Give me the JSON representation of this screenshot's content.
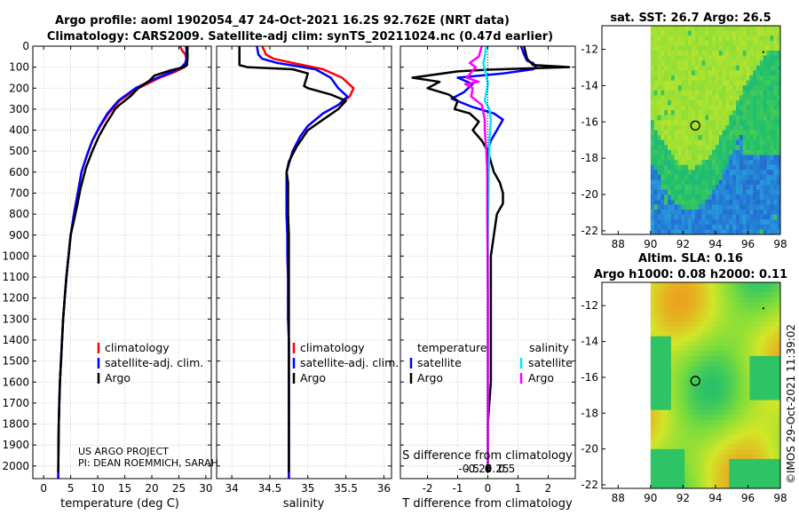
{
  "title": {
    "line1": "Argo profile: aoml 1902054_47 24-Oct-2021 16.2S 92.762E (NRT data)",
    "line2": "Climatology: CARS2009. Satellite-adj clim: synTS_20211024.nc (0.47d earlier)"
  },
  "colors": {
    "climatology": "#ff0000",
    "satellite": "#0000ff",
    "argo": "#000000",
    "sat_salinity": "#00e5ff",
    "argo_salinity": "#ff00ff"
  },
  "depth_axis": {
    "ylim": [
      0,
      2060
    ],
    "ticks": [
      0,
      100,
      200,
      300,
      400,
      500,
      600,
      700,
      800,
      900,
      1000,
      1100,
      1200,
      1300,
      1400,
      1500,
      1600,
      1700,
      1800,
      1900,
      2000
    ]
  },
  "panels": [
    {
      "id": "temperature",
      "xlabel": "temperature (deg C)",
      "xlim": [
        -2,
        31
      ],
      "xticks": [
        0,
        5,
        10,
        15,
        20,
        25,
        30
      ],
      "legend": [
        "climatology",
        "satellite-adj. clim.",
        "Argo"
      ],
      "note": [
        "US ARGO PROJECT",
        "PI: DEAN ROEMMICH, SARAH"
      ],
      "series": [
        {
          "name": "climatology",
          "color": "#ff0000",
          "x": [
            25.2,
            25.6,
            26.2,
            26.4,
            26.4,
            26.0,
            24.5,
            21.5,
            17.5,
            14.0,
            12.0,
            10.5,
            9.0,
            8.0,
            7.0,
            6.3,
            5.6,
            5.0,
            4.6,
            4.2,
            3.9,
            3.6,
            3.4,
            3.2,
            3.0,
            2.9,
            2.8,
            2.75,
            2.7
          ],
          "y": [
            0,
            20,
            40,
            60,
            80,
            100,
            120,
            150,
            200,
            260,
            320,
            380,
            450,
            520,
            600,
            700,
            800,
            900,
            1000,
            1100,
            1200,
            1300,
            1400,
            1500,
            1600,
            1700,
            1800,
            1900,
            2060
          ]
        },
        {
          "name": "satellite-adj. clim.",
          "color": "#0000ff",
          "x": [
            26.3,
            26.4,
            26.4,
            26.4,
            26.2,
            25.5,
            24.0,
            21.0,
            17.0,
            13.8,
            11.8,
            10.4,
            9.0,
            8.0,
            7.0,
            6.3,
            5.6,
            5.0,
            4.6,
            4.2,
            3.9,
            3.6,
            3.4,
            3.2,
            3.0,
            2.9,
            2.8,
            2.75,
            2.7
          ],
          "y": [
            0,
            20,
            40,
            60,
            80,
            100,
            120,
            150,
            200,
            260,
            320,
            380,
            450,
            520,
            600,
            700,
            800,
            900,
            1000,
            1100,
            1200,
            1300,
            1400,
            1500,
            1600,
            1700,
            1800,
            1900,
            2060
          ]
        },
        {
          "name": "Argo",
          "color": "#000000",
          "x": [
            26.6,
            26.6,
            26.5,
            26.0,
            23.5,
            20.5,
            19.5,
            17.5,
            16.0,
            14.0,
            13.2,
            12.5,
            11.5,
            10.2,
            9.0,
            7.8,
            6.8,
            6.2,
            5.6,
            5.0,
            4.6,
            4.2,
            3.9,
            3.6,
            3.4,
            3.2,
            3.0,
            2.9,
            2.8,
            2.75,
            2.7
          ],
          "y": [
            0,
            60,
            90,
            100,
            115,
            140,
            165,
            200,
            240,
            280,
            300,
            330,
            370,
            430,
            500,
            580,
            680,
            760,
            830,
            900,
            1000,
            1100,
            1200,
            1300,
            1400,
            1500,
            1600,
            1700,
            1800,
            1900,
            2030
          ]
        }
      ]
    },
    {
      "id": "salinity",
      "xlabel": "salinity",
      "xlim": [
        33.8,
        36.1
      ],
      "xticks": [
        34,
        34.5,
        35,
        35.5,
        36
      ],
      "legend": [
        "climatology",
        "satellite-adj. clim.",
        "Argo"
      ],
      "series": [
        {
          "name": "climatology",
          "color": "#ff0000",
          "x": [
            34.4,
            34.45,
            34.55,
            34.8,
            35.2,
            35.45,
            35.6,
            35.55,
            35.4,
            35.2,
            35.0,
            34.9,
            34.8,
            34.75,
            34.72,
            34.72,
            34.72,
            34.73,
            34.73,
            34.74,
            34.74,
            34.74,
            34.75,
            34.75,
            34.75,
            34.75,
            34.75,
            34.75
          ],
          "y": [
            0,
            40,
            60,
            80,
            110,
            150,
            200,
            240,
            280,
            320,
            380,
            430,
            500,
            560,
            600,
            700,
            800,
            900,
            1000,
            1100,
            1200,
            1300,
            1400,
            1500,
            1600,
            1700,
            1800,
            2060
          ]
        },
        {
          "name": "satellite-adj. clim.",
          "color": "#0000ff",
          "x": [
            34.33,
            34.35,
            34.4,
            34.6,
            35.1,
            35.3,
            35.4,
            35.52,
            35.4,
            35.2,
            35.0,
            34.9,
            34.8,
            34.75,
            34.72,
            34.72,
            34.72,
            34.73,
            34.73,
            34.74,
            34.74,
            34.74,
            34.75,
            34.75,
            34.75,
            34.75,
            34.75,
            34.75
          ],
          "y": [
            0,
            40,
            60,
            80,
            110,
            150,
            200,
            240,
            280,
            320,
            380,
            430,
            500,
            560,
            600,
            700,
            800,
            900,
            1000,
            1100,
            1200,
            1300,
            1400,
            1500,
            1600,
            1700,
            1800,
            2060
          ]
        },
        {
          "name": "Argo",
          "color": "#000000",
          "x": [
            34.1,
            34.1,
            34.2,
            34.8,
            35.0,
            34.95,
            35.0,
            35.3,
            35.5,
            35.4,
            35.2,
            35.0,
            34.85,
            34.75,
            34.72,
            34.74,
            34.74,
            34.74,
            34.75,
            34.75,
            34.75,
            34.75,
            34.75,
            34.75,
            34.75,
            34.75,
            34.75
          ],
          "y": [
            0,
            90,
            100,
            110,
            130,
            190,
            200,
            230,
            260,
            300,
            350,
            400,
            480,
            550,
            600,
            650,
            700,
            800,
            900,
            1000,
            1200,
            1400,
            1600,
            1800,
            1900,
            1950,
            2030
          ]
        }
      ]
    },
    {
      "id": "difference",
      "xlabel": "T difference from climatology",
      "xlim": [
        -2.9,
        2.9
      ],
      "xticks": [
        -2,
        -1,
        0,
        1,
        2
      ],
      "inner_xlabel": "S difference from climatology",
      "inner_xticks": [
        -0.5,
        -0.25,
        0,
        0.25,
        0.5
      ],
      "legend_left_title": "temperature",
      "legend_left": [
        "satellite",
        "Argo"
      ],
      "legend_right_title": "salinity",
      "legend_right": [
        "satellite",
        "Argo"
      ],
      "series": [
        {
          "name": "temperature satellite",
          "color": "#0000ff",
          "x": [
            1.1,
            1.2,
            1.3,
            1.5,
            1.6,
            1.5,
            0.5,
            -1.0,
            -0.5,
            -0.8,
            -1.2,
            -0.5,
            0.2,
            0.5,
            0.3,
            0.1,
            0.0,
            0.0,
            0.0,
            0.0
          ],
          "y": [
            0,
            40,
            70,
            80,
            100,
            110,
            130,
            150,
            180,
            220,
            250,
            290,
            320,
            350,
            400,
            450,
            500,
            600,
            700,
            800
          ]
        },
        {
          "name": "temperature Argo",
          "color": "#000000",
          "x": [
            1.2,
            1.3,
            1.5,
            2.7,
            0.0,
            -1.0,
            -2.5,
            -1.6,
            -2.0,
            -1.3,
            -1.0,
            -1.1,
            -0.6,
            -0.3,
            -0.5,
            -0.2,
            0.0,
            0.2,
            0.4,
            0.5,
            0.5,
            0.3,
            0.2,
            0.1,
            0.1,
            0.1,
            0.1,
            0.0,
            0.0,
            0.0
          ],
          "y": [
            0,
            60,
            90,
            100,
            112,
            120,
            150,
            170,
            200,
            230,
            260,
            300,
            320,
            360,
            400,
            450,
            500,
            600,
            650,
            700,
            750,
            800,
            900,
            1000,
            1200,
            1400,
            1600,
            1800,
            1900,
            2030
          ]
        },
        {
          "name": "salinity satellite",
          "color": "#00e5ff",
          "x": [
            -0.05,
            -0.1,
            -0.15,
            -0.12,
            -0.05,
            0.0,
            -0.05,
            -0.1,
            0.05,
            0.1,
            0.08,
            0.05,
            0.05,
            0.03,
            0.02,
            0.01,
            0.0,
            0.0,
            0.0
          ],
          "y": [
            0,
            50,
            80,
            100,
            140,
            180,
            220,
            260,
            300,
            350,
            400,
            450,
            500,
            600,
            700,
            800,
            900,
            1200,
            2000
          ]
        },
        {
          "name": "salinity Argo",
          "color": "#ff00ff",
          "x": [
            -0.2,
            -0.3,
            -0.6,
            -0.4,
            -0.7,
            -0.3,
            -0.75,
            -0.5,
            -0.55,
            -0.2,
            -0.1,
            -0.1,
            -0.05,
            -0.02,
            -0.02,
            -0.02,
            -0.01,
            0.0,
            0.0,
            0.0
          ],
          "y": [
            0,
            50,
            80,
            100,
            150,
            170,
            180,
            200,
            240,
            280,
            350,
            400,
            500,
            600,
            700,
            800,
            1000,
            1200,
            1600,
            2000
          ]
        }
      ]
    }
  ],
  "maps": [
    {
      "id": "sst",
      "title": "sat. SST: 26.7 Argo: 26.5",
      "xlim": [
        87,
        98
      ],
      "ylim": [
        -22.2,
        -10.7
      ],
      "xticks": [
        88,
        90,
        92,
        94,
        96,
        98
      ],
      "yticks": [
        -12,
        -14,
        -16,
        -18,
        -20,
        -22
      ],
      "argo_lon": 92.76,
      "argo_lat": -16.2
    },
    {
      "id": "sla",
      "title1": "Altim. SLA: 0.16",
      "title2": "Argo h1000: 0.08 h2000: 0.11",
      "xlim": [
        87,
        98
      ],
      "ylim": [
        -22.2,
        -10.7
      ],
      "xticks": [
        88,
        90,
        92,
        94,
        96,
        98
      ],
      "yticks": [
        -12,
        -14,
        -16,
        -18,
        -20,
        -22
      ],
      "argo_lon": 92.76,
      "argo_lat": -16.2
    }
  ],
  "timestamp": "©IMOS 29-Oct-2021 11:39:02"
}
